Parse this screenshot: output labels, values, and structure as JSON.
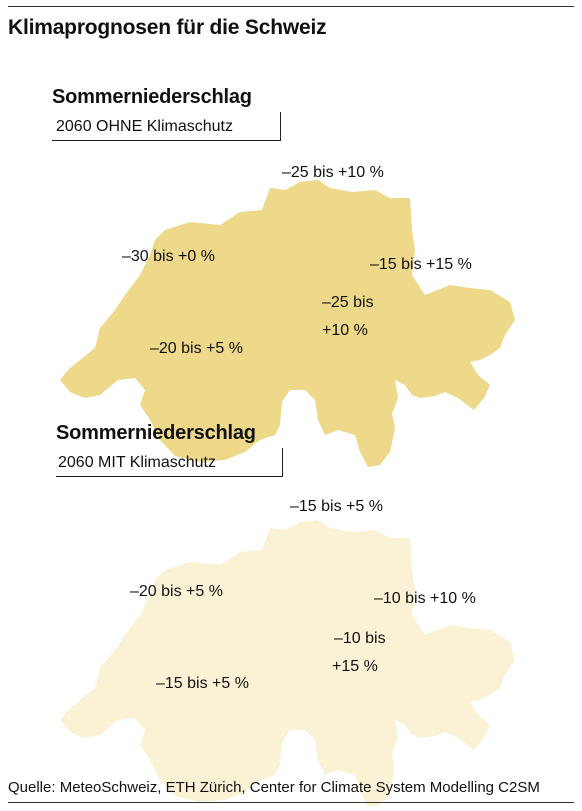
{
  "title": "Klimaprognosen für die Schweiz",
  "source": "Quelle: MeteoSchweiz, ETH Zürich, Center for Climate System Modelling C2SM",
  "colors": {
    "scenario_without": "#eed88a",
    "scenario_with": "#fbf2d6"
  },
  "maps": [
    {
      "title": "Sommerniederschlag",
      "subtitle": "2060 OHNE Klimaschutz",
      "regions": {
        "west": "–30 bis +0 %",
        "northeast": "–25 bis +10 %",
        "east": "–15 bis +15 %",
        "south_line1": "–25 bis",
        "south_line2": "+10 %",
        "southwest": "–20 bis +5  %"
      }
    },
    {
      "title": "Sommerniederschlag",
      "subtitle": "2060 MIT Klimaschutz",
      "regions": {
        "west": "–20 bis +5 %",
        "northeast": "–15 bis +5 %",
        "east": "–10 bis +10 %",
        "south_line1": "–10 bis",
        "south_line2": "+15 %",
        "southwest": "–15 bis +5 %"
      }
    }
  ]
}
